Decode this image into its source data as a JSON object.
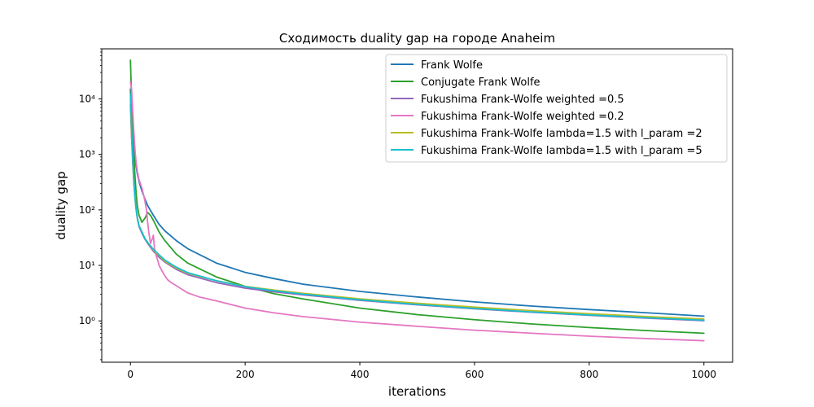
{
  "chart_data": {
    "type": "line",
    "title": "Сходимость duality gap на городе Anaheim",
    "xlabel": "iterations",
    "ylabel": "duality gap",
    "xlim": [
      -50,
      1050
    ],
    "ylim": [
      0.18,
      80000
    ],
    "yscale": "log",
    "grid": false,
    "legend_position": "top-right",
    "x_ticks": [
      0,
      200,
      400,
      600,
      800,
      1000
    ],
    "x_tick_labels": [
      "0",
      "200",
      "400",
      "600",
      "800",
      "1000"
    ],
    "y_ticks": [
      1,
      10,
      100,
      1000,
      10000
    ],
    "y_tick_labels": [
      "10⁰",
      "10¹",
      "10²",
      "10³",
      "10⁴"
    ],
    "series": [
      {
        "name": "Frank Wolfe",
        "color": "#1f77b4",
        "x": [
          0,
          2,
          5,
          8,
          12,
          16,
          20,
          25,
          30,
          40,
          50,
          60,
          80,
          100,
          150,
          200,
          250,
          300,
          400,
          500,
          600,
          700,
          800,
          900,
          1000
        ],
        "y": [
          15000,
          4000,
          1500,
          800,
          450,
          300,
          220,
          160,
          120,
          80,
          55,
          42,
          28,
          20,
          11,
          7.5,
          5.8,
          4.6,
          3.4,
          2.7,
          2.2,
          1.85,
          1.6,
          1.4,
          1.22
        ]
      },
      {
        "name": "Conjugate Frank Wolfe",
        "color": "#2ca02c",
        "x": [
          0,
          2,
          4,
          6,
          8,
          10,
          12,
          15,
          20,
          25,
          30,
          35,
          40,
          50,
          60,
          80,
          100,
          150,
          200,
          250,
          300,
          400,
          500,
          600,
          700,
          800,
          900,
          1000
        ],
        "y": [
          50000,
          10000,
          2500,
          900,
          400,
          200,
          120,
          80,
          60,
          70,
          90,
          80,
          65,
          40,
          28,
          16,
          11,
          6.2,
          4.2,
          3.1,
          2.5,
          1.7,
          1.3,
          1.05,
          0.88,
          0.76,
          0.67,
          0.6
        ]
      },
      {
        "name": "Fukushima Frank-Wolfe weighted =0.5",
        "color": "#9467bd",
        "x": [
          0,
          2,
          4,
          6,
          8,
          10,
          12,
          15,
          20,
          25,
          30,
          40,
          50,
          60,
          80,
          100,
          150,
          200,
          250,
          300,
          400,
          500,
          600,
          700,
          800,
          900,
          1000
        ],
        "y": [
          8000,
          2000,
          700,
          300,
          160,
          100,
          70,
          50,
          38,
          30,
          25,
          18,
          14,
          11.5,
          8.5,
          6.8,
          4.9,
          3.9,
          3.35,
          2.95,
          2.35,
          1.95,
          1.65,
          1.43,
          1.26,
          1.12,
          1.01
        ]
      },
      {
        "name": "Fukushima Frank-Wolfe weighted =0.2",
        "color": "#e377c2",
        "x": [
          0,
          2,
          4,
          6,
          8,
          10,
          12,
          15,
          20,
          25,
          28,
          30,
          32,
          35,
          38,
          40,
          42,
          45,
          48,
          50,
          55,
          60,
          65,
          70,
          80,
          90,
          100,
          120,
          150,
          200,
          250,
          300,
          400,
          500,
          600,
          700,
          800,
          900,
          1000
        ],
        "y": [
          20000,
          15000,
          6000,
          2500,
          1200,
          700,
          500,
          350,
          250,
          150,
          100,
          60,
          40,
          25,
          30,
          35,
          20,
          15,
          12,
          10,
          8,
          6.5,
          5.5,
          5,
          4.3,
          3.7,
          3.2,
          2.7,
          2.3,
          1.7,
          1.4,
          1.2,
          0.95,
          0.8,
          0.68,
          0.6,
          0.53,
          0.48,
          0.44
        ]
      },
      {
        "name": "Fukushima Frank-Wolfe lambda=1.5 with l_param =2",
        "color": "#bcbd22",
        "x": [
          0,
          2,
          4,
          6,
          8,
          10,
          12,
          15,
          20,
          25,
          30,
          40,
          50,
          60,
          80,
          100,
          150,
          200,
          250,
          300,
          400,
          500,
          600,
          700,
          800,
          900,
          1000
        ],
        "y": [
          10000,
          2500,
          800,
          320,
          170,
          105,
          72,
          52,
          40,
          31,
          26,
          19,
          15,
          12,
          9,
          7.2,
          5.3,
          4.2,
          3.6,
          3.15,
          2.5,
          2.08,
          1.77,
          1.53,
          1.35,
          1.2,
          1.08
        ]
      },
      {
        "name": "Fukushima Frank-Wolfe lambda=1.5 with l_param =5",
        "color": "#17becf",
        "x": [
          0,
          2,
          4,
          6,
          8,
          10,
          12,
          15,
          20,
          25,
          30,
          40,
          50,
          60,
          80,
          100,
          150,
          200,
          250,
          300,
          400,
          500,
          600,
          700,
          800,
          900,
          1000
        ],
        "y": [
          12000,
          3000,
          900,
          330,
          170,
          105,
          72,
          52,
          40,
          31,
          26,
          19.5,
          15.5,
          12.5,
          9.3,
          7.4,
          5.3,
          4.15,
          3.5,
          3.05,
          2.4,
          1.98,
          1.68,
          1.45,
          1.28,
          1.14,
          1.03
        ]
      }
    ]
  }
}
